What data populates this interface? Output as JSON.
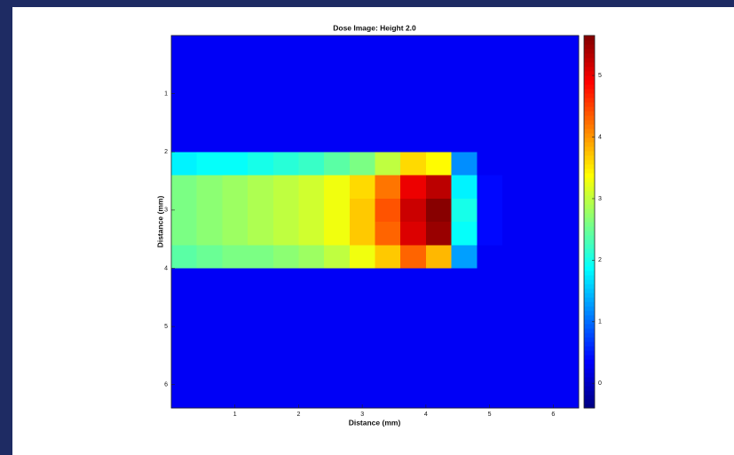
{
  "chart_data": {
    "type": "heatmap",
    "title": "Dose Image: Height 2.0",
    "x_label": "Distance (mm)",
    "y_label": "Distance (mm)",
    "xbins": [
      0,
      0.4,
      0.8,
      1.2,
      1.6,
      2.0,
      2.4,
      2.8,
      3.2,
      3.6,
      4.0,
      4.4,
      4.8,
      5.2,
      5.6,
      6.0,
      6.4
    ],
    "ybins": [
      0,
      0.4,
      0.8,
      1.2,
      1.6,
      2.0,
      2.4,
      2.8,
      3.2,
      3.6,
      4.0,
      4.4,
      4.8,
      5.2,
      5.6,
      6.0,
      6.4
    ],
    "values": [
      [
        0.3,
        0.3,
        0.3,
        0.3,
        0.3,
        0.3,
        0.3,
        0.3,
        0.3,
        0.3,
        0.3,
        0.3,
        0.3,
        0.3,
        0.3,
        0.3
      ],
      [
        0.3,
        0.3,
        0.3,
        0.3,
        0.3,
        0.3,
        0.3,
        0.3,
        0.3,
        0.3,
        0.3,
        0.3,
        0.3,
        0.3,
        0.3,
        0.3
      ],
      [
        0.3,
        0.3,
        0.3,
        0.3,
        0.3,
        0.3,
        0.3,
        0.3,
        0.3,
        0.3,
        0.3,
        0.3,
        0.3,
        0.3,
        0.3,
        0.3
      ],
      [
        0.3,
        0.3,
        0.3,
        0.3,
        0.3,
        0.3,
        0.3,
        0.3,
        0.3,
        0.3,
        0.3,
        0.3,
        0.3,
        0.3,
        0.3,
        0.3
      ],
      [
        0.3,
        0.3,
        0.3,
        0.3,
        0.3,
        0.3,
        0.3,
        0.3,
        0.3,
        0.3,
        0.3,
        0.3,
        0.3,
        0.3,
        0.3,
        0.3
      ],
      [
        1.8,
        1.9,
        1.9,
        2.0,
        2.1,
        2.2,
        2.4,
        2.6,
        3.0,
        3.6,
        3.4,
        1.2,
        0.3,
        0.3,
        0.3,
        0.3
      ],
      [
        2.6,
        2.7,
        2.8,
        2.9,
        3.0,
        3.1,
        3.3,
        3.6,
        4.2,
        5.0,
        5.3,
        1.8,
        0.4,
        0.3,
        0.3,
        0.3
      ],
      [
        2.6,
        2.7,
        2.8,
        2.9,
        3.0,
        3.1,
        3.3,
        3.7,
        4.4,
        5.2,
        5.6,
        2.0,
        0.4,
        0.3,
        0.3,
        0.3
      ],
      [
        2.6,
        2.7,
        2.8,
        2.9,
        3.0,
        3.1,
        3.3,
        3.7,
        4.3,
        5.1,
        5.5,
        1.9,
        0.4,
        0.3,
        0.3,
        0.3
      ],
      [
        2.4,
        2.5,
        2.6,
        2.6,
        2.7,
        2.8,
        3.0,
        3.3,
        3.7,
        4.3,
        3.8,
        1.3,
        0.3,
        0.3,
        0.3,
        0.3
      ],
      [
        0.3,
        0.3,
        0.3,
        0.3,
        0.3,
        0.3,
        0.3,
        0.3,
        0.3,
        0.3,
        0.3,
        0.3,
        0.3,
        0.3,
        0.3,
        0.3
      ],
      [
        0.3,
        0.3,
        0.3,
        0.3,
        0.3,
        0.3,
        0.3,
        0.3,
        0.3,
        0.3,
        0.3,
        0.3,
        0.3,
        0.3,
        0.3,
        0.3
      ],
      [
        0.3,
        0.3,
        0.3,
        0.3,
        0.3,
        0.3,
        0.3,
        0.3,
        0.3,
        0.3,
        0.3,
        0.3,
        0.3,
        0.3,
        0.3,
        0.3
      ],
      [
        0.3,
        0.3,
        0.3,
        0.3,
        0.3,
        0.3,
        0.3,
        0.3,
        0.3,
        0.3,
        0.3,
        0.3,
        0.3,
        0.3,
        0.3,
        0.3
      ],
      [
        0.3,
        0.3,
        0.3,
        0.3,
        0.3,
        0.3,
        0.3,
        0.3,
        0.3,
        0.3,
        0.3,
        0.3,
        0.3,
        0.3,
        0.3,
        0.3
      ],
      [
        0.3,
        0.3,
        0.3,
        0.3,
        0.3,
        0.3,
        0.3,
        0.3,
        0.3,
        0.3,
        0.3,
        0.3,
        0.3,
        0.3,
        0.3,
        0.3
      ]
    ],
    "xlim": [
      0,
      6.4
    ],
    "ylim": [
      6.4,
      0
    ],
    "xticks": [
      1,
      2,
      3,
      4,
      5,
      6
    ],
    "yticks": [
      1,
      2,
      3,
      4,
      5,
      6
    ],
    "colormap": "jet",
    "clim": [
      -0.4,
      5.65
    ],
    "cticks": [
      0,
      1,
      2,
      3,
      4,
      5
    ]
  }
}
